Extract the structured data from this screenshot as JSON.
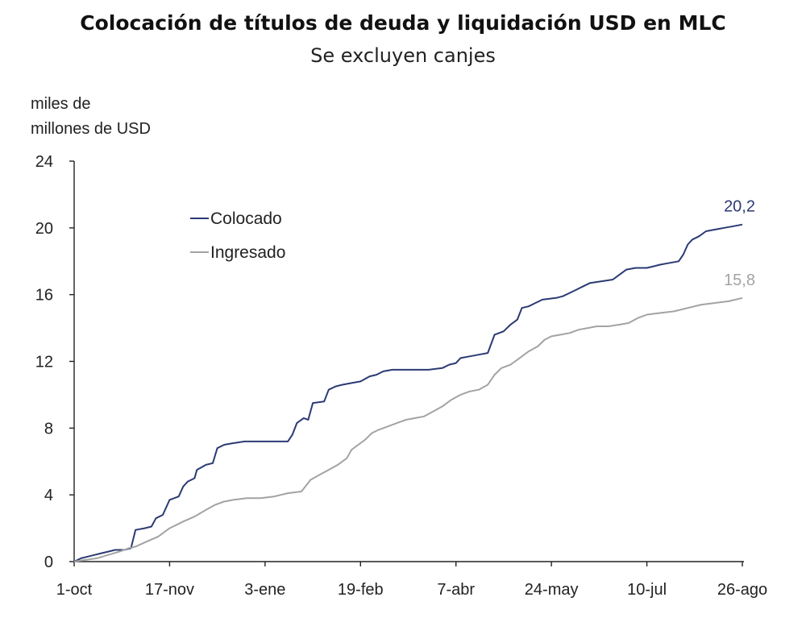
{
  "chart_data": {
    "type": "line",
    "title": "Colocación de títulos de deuda y liquidación USD en MLC",
    "subtitle": "Se excluyen canjes",
    "ylabel": "miles de\nmillones de USD",
    "xlabel": "",
    "ylim": [
      0,
      24
    ],
    "yticks": [
      "0",
      "4",
      "8",
      "12",
      "16",
      "20",
      "24"
    ],
    "xticks": [
      "1-oct",
      "17-nov",
      "3-ene",
      "19-feb",
      "7-abr",
      "24-may",
      "10-jul",
      "26-ago"
    ],
    "legend_position": "top-left",
    "series": [
      {
        "name": "Colocado",
        "color": "#2b3a73",
        "end_label": "20,2",
        "points": [
          [
            0,
            0.0
          ],
          [
            3,
            0.2
          ],
          [
            6,
            0.3
          ],
          [
            9,
            0.4
          ],
          [
            12,
            0.5
          ],
          [
            15,
            0.6
          ],
          [
            18,
            0.7
          ],
          [
            22,
            0.7
          ],
          [
            25,
            0.8
          ],
          [
            27,
            1.9
          ],
          [
            31,
            2.0
          ],
          [
            34,
            2.1
          ],
          [
            36,
            2.6
          ],
          [
            39,
            2.8
          ],
          [
            42,
            3.7
          ],
          [
            46,
            3.9
          ],
          [
            48,
            4.5
          ],
          [
            50,
            4.8
          ],
          [
            53,
            5.0
          ],
          [
            54,
            5.5
          ],
          [
            58,
            5.8
          ],
          [
            61,
            5.9
          ],
          [
            63,
            6.8
          ],
          [
            66,
            7.0
          ],
          [
            70,
            7.1
          ],
          [
            75,
            7.2
          ],
          [
            80,
            7.2
          ],
          [
            88,
            7.2
          ],
          [
            94,
            7.2
          ],
          [
            96,
            7.6
          ],
          [
            98,
            8.3
          ],
          [
            101,
            8.6
          ],
          [
            103,
            8.5
          ],
          [
            105,
            9.5
          ],
          [
            110,
            9.6
          ],
          [
            112,
            10.3
          ],
          [
            115,
            10.5
          ],
          [
            118,
            10.6
          ],
          [
            122,
            10.7
          ],
          [
            126,
            10.8
          ],
          [
            130,
            11.1
          ],
          [
            133,
            11.2
          ],
          [
            136,
            11.4
          ],
          [
            140,
            11.5
          ],
          [
            148,
            11.5
          ],
          [
            156,
            11.5
          ],
          [
            162,
            11.6
          ],
          [
            165,
            11.8
          ],
          [
            168,
            11.9
          ],
          [
            170,
            12.2
          ],
          [
            174,
            12.3
          ],
          [
            178,
            12.4
          ],
          [
            182,
            12.5
          ],
          [
            185,
            13.6
          ],
          [
            189,
            13.8
          ],
          [
            192,
            14.2
          ],
          [
            195,
            14.5
          ],
          [
            197,
            15.2
          ],
          [
            200,
            15.3
          ],
          [
            203,
            15.5
          ],
          [
            206,
            15.7
          ],
          [
            212,
            15.8
          ],
          [
            215,
            15.9
          ],
          [
            218,
            16.1
          ],
          [
            221,
            16.3
          ],
          [
            224,
            16.5
          ],
          [
            227,
            16.7
          ],
          [
            232,
            16.8
          ],
          [
            237,
            16.9
          ],
          [
            240,
            17.2
          ],
          [
            243,
            17.5
          ],
          [
            247,
            17.6
          ],
          [
            252,
            17.6
          ],
          [
            255,
            17.7
          ],
          [
            258,
            17.8
          ],
          [
            262,
            17.9
          ],
          [
            266,
            18.0
          ],
          [
            268,
            18.4
          ],
          [
            270,
            19.0
          ],
          [
            272,
            19.3
          ],
          [
            275,
            19.5
          ],
          [
            278,
            19.8
          ],
          [
            282,
            19.9
          ],
          [
            286,
            20.0
          ],
          [
            290,
            20.1
          ],
          [
            294,
            20.2
          ]
        ]
      },
      {
        "name": "Ingresado",
        "color": "#a3a3a3",
        "end_label": "15,8",
        "points": [
          [
            0,
            0.0
          ],
          [
            5,
            0.1
          ],
          [
            10,
            0.2
          ],
          [
            15,
            0.4
          ],
          [
            20,
            0.6
          ],
          [
            24,
            0.8
          ],
          [
            27,
            0.9
          ],
          [
            32,
            1.2
          ],
          [
            37,
            1.5
          ],
          [
            42,
            2.0
          ],
          [
            48,
            2.4
          ],
          [
            53,
            2.7
          ],
          [
            58,
            3.1
          ],
          [
            62,
            3.4
          ],
          [
            66,
            3.6
          ],
          [
            70,
            3.7
          ],
          [
            76,
            3.8
          ],
          [
            82,
            3.8
          ],
          [
            88,
            3.9
          ],
          [
            94,
            4.1
          ],
          [
            100,
            4.2
          ],
          [
            104,
            4.9
          ],
          [
            108,
            5.2
          ],
          [
            112,
            5.5
          ],
          [
            116,
            5.8
          ],
          [
            120,
            6.2
          ],
          [
            122,
            6.7
          ],
          [
            125,
            7.0
          ],
          [
            128,
            7.3
          ],
          [
            131,
            7.7
          ],
          [
            134,
            7.9
          ],
          [
            138,
            8.1
          ],
          [
            142,
            8.3
          ],
          [
            146,
            8.5
          ],
          [
            150,
            8.6
          ],
          [
            154,
            8.7
          ],
          [
            158,
            9.0
          ],
          [
            162,
            9.3
          ],
          [
            166,
            9.7
          ],
          [
            170,
            10.0
          ],
          [
            174,
            10.2
          ],
          [
            178,
            10.3
          ],
          [
            182,
            10.6
          ],
          [
            185,
            11.2
          ],
          [
            188,
            11.6
          ],
          [
            192,
            11.8
          ],
          [
            196,
            12.2
          ],
          [
            200,
            12.6
          ],
          [
            204,
            12.9
          ],
          [
            207,
            13.3
          ],
          [
            210,
            13.5
          ],
          [
            214,
            13.6
          ],
          [
            218,
            13.7
          ],
          [
            222,
            13.9
          ],
          [
            226,
            14.0
          ],
          [
            230,
            14.1
          ],
          [
            235,
            14.1
          ],
          [
            240,
            14.2
          ],
          [
            244,
            14.3
          ],
          [
            248,
            14.6
          ],
          [
            252,
            14.8
          ],
          [
            258,
            14.9
          ],
          [
            264,
            15.0
          ],
          [
            270,
            15.2
          ],
          [
            276,
            15.4
          ],
          [
            282,
            15.5
          ],
          [
            288,
            15.6
          ],
          [
            294,
            15.8
          ]
        ]
      }
    ]
  }
}
